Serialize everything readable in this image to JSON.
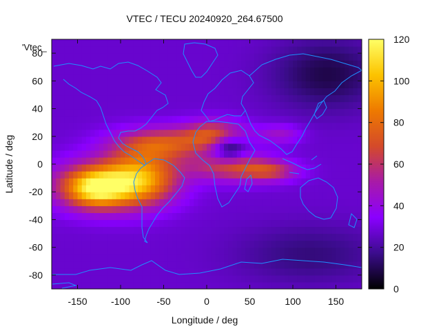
{
  "chart_data": {
    "type": "heatmap",
    "title": "VTEC / TECU 20240920_264.67500",
    "xlabel": "Longitude / deg",
    "ylabel": "Latitude / deg",
    "overlay_label": "'Vtec_",
    "xlim": [
      -180,
      180
    ],
    "ylim": [
      -90,
      90
    ],
    "x_ticks": [
      -150,
      -100,
      -50,
      0,
      50,
      100,
      150
    ],
    "y_ticks": [
      -80,
      -60,
      -40,
      -20,
      0,
      20,
      40,
      60,
      80
    ],
    "x_tick_labels": [
      "-150",
      "-100",
      "-50",
      "0",
      "50",
      "100",
      "150"
    ],
    "y_tick_labels": [
      "-80",
      "-60",
      "-40",
      "-20",
      "0",
      "20",
      "40",
      "60",
      "80"
    ],
    "colorbar": {
      "range": [
        0,
        120
      ],
      "ticks": [
        0,
        20,
        40,
        60,
        80,
        100,
        120
      ],
      "tick_labels": [
        "0",
        "20",
        "40",
        "60",
        "80",
        "100",
        "120"
      ],
      "colormap": "gnuplot-pm3d",
      "stops": [
        "#000000",
        "#3b0c8c",
        "#8a00ff",
        "#a81aa8",
        "#d44a2a",
        "#ee7a00",
        "#fcc300",
        "#ffff66"
      ]
    },
    "grid_step_deg": 5,
    "background_tecu": 27,
    "features": [
      {
        "name": "pacific-equatorial-anomaly",
        "lon": -118,
        "lat": -15,
        "sigma_lon": 42,
        "sigma_lat": 12,
        "peak_tecu": 60
      },
      {
        "name": "pacific-peak",
        "lon": -130,
        "lat": -18,
        "sigma_lon": 22,
        "sigma_lat": 9,
        "peak_tecu": 40
      },
      {
        "name": "south-america-peak",
        "lon": -75,
        "lat": -8,
        "sigma_lon": 30,
        "sigma_lat": 14,
        "peak_tecu": 48
      },
      {
        "name": "north-crest-atlantic",
        "lon": -50,
        "lat": 15,
        "sigma_lon": 40,
        "sigma_lat": 8,
        "peak_tecu": 42
      },
      {
        "name": "north-crest-africa",
        "lon": 10,
        "lat": 22,
        "sigma_lon": 25,
        "sigma_lat": 7,
        "peak_tecu": 40
      },
      {
        "name": "south-crest-africa",
        "lon": 30,
        "lat": -2,
        "sigma_lon": 35,
        "sigma_lat": 7,
        "peak_tecu": 40
      },
      {
        "name": "central-africa-trough",
        "lon": 25,
        "lat": 12,
        "sigma_lon": 14,
        "sigma_lat": 7,
        "peak_tecu": -32
      },
      {
        "name": "indian-ocean-tongue",
        "lon": 75,
        "lat": -5,
        "sigma_lon": 22,
        "sigma_lat": 5,
        "peak_tecu": 28
      },
      {
        "name": "arabia-tongue",
        "lon": 85,
        "lat": 22,
        "sigma_lon": 18,
        "sigma_lat": 5,
        "peak_tecu": 18
      },
      {
        "name": "asia-night-low",
        "lon": 140,
        "lat": 65,
        "sigma_lon": 45,
        "sigma_lat": 18,
        "peak_tecu": -18
      },
      {
        "name": "south-pacific-low",
        "lon": 120,
        "lat": -65,
        "sigma_lon": 60,
        "sigma_lat": 15,
        "peak_tecu": -12
      }
    ]
  }
}
